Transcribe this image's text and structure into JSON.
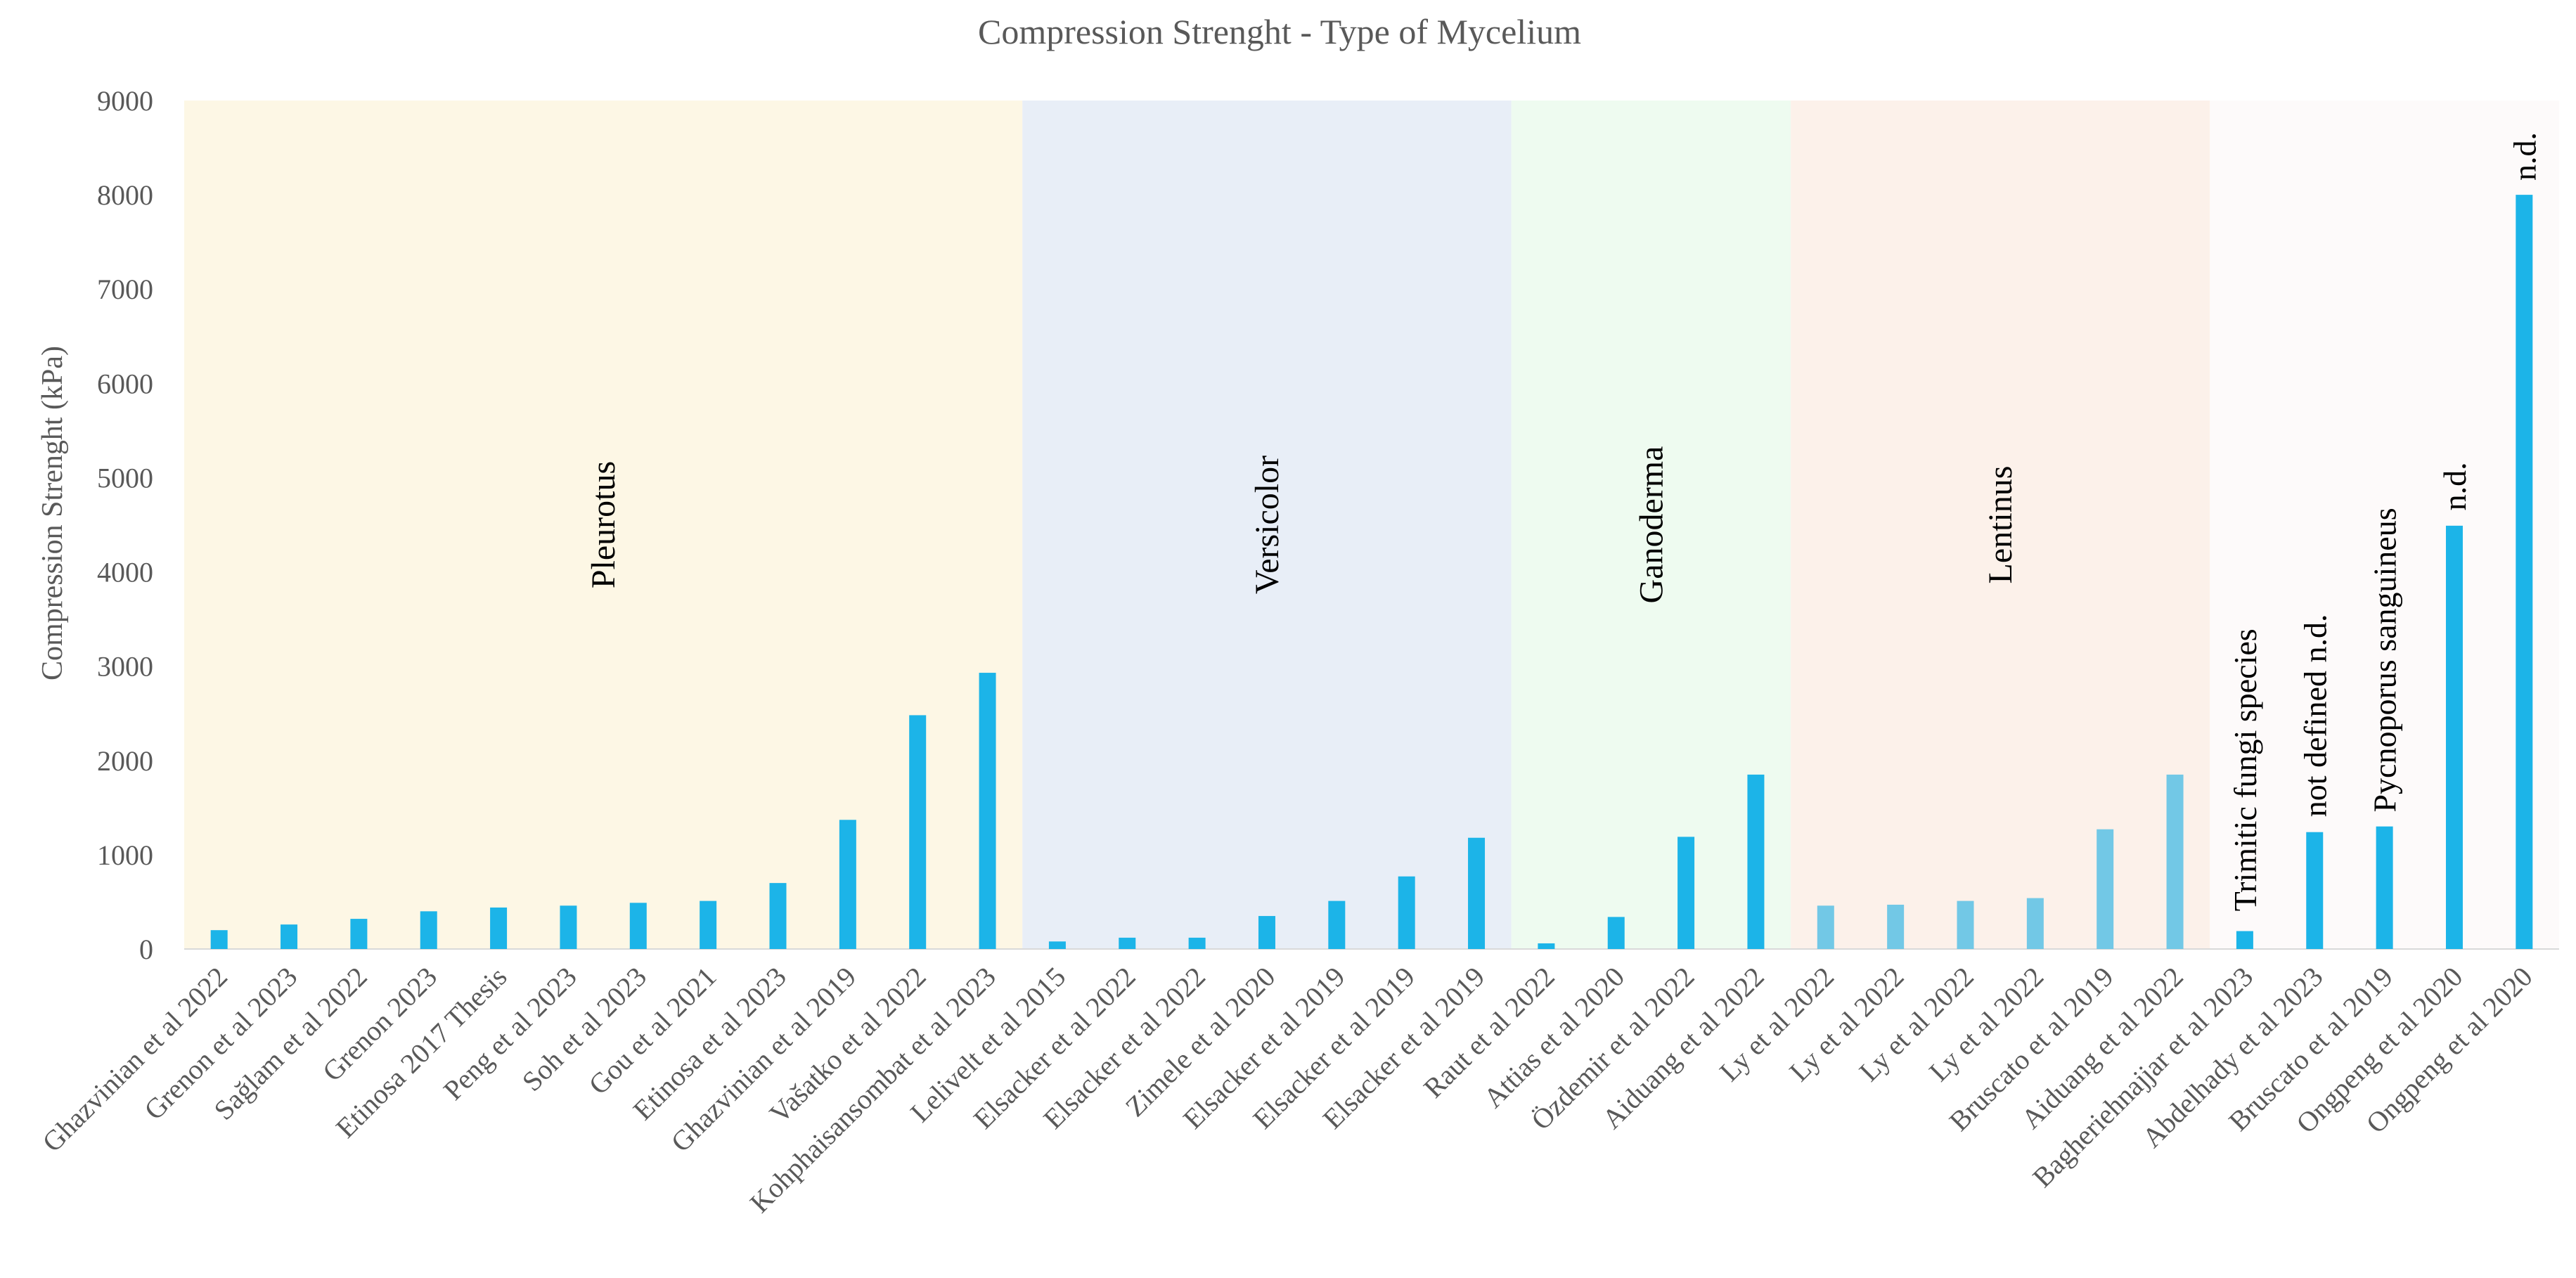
{
  "chart_data": {
    "type": "bar",
    "title": "Compression Strenght - Type of Mycelium",
    "xlabel": "",
    "ylabel": "Compression Strenght (kPa)",
    "ylim": [
      0,
      9000
    ],
    "yticks": [
      0,
      1000,
      2000,
      3000,
      4000,
      5000,
      6000,
      7000,
      8000,
      9000
    ],
    "grid": false,
    "categories": [
      "Ghazvinian et al 2022",
      "Grenon et al 2023",
      "Sağlam et al  2022",
      "Grenon 2023",
      "Etinosa 2017 Thesis",
      "Peng et al 2023",
      "Soh  et al 2023",
      "Gou et al 2021",
      "Etinosa et al 2023",
      "Ghazvinian et al 2019",
      "Vašatko et al 2022",
      "Kohphaisansombat et al 2023",
      "Lelivelt et al 2015",
      "Elsacker et al 2022",
      "Elsacker et al 2022",
      "Zimele et al  2020",
      "Elsacker et al 2019",
      "Elsacker et al 2019",
      "Elsacker et al 2019",
      "Raut et al 2022",
      "Attias et al 2020",
      "Özdemir et al  2022",
      "Aiduang et al  2022",
      "Ly et al  2022",
      "Ly et al  2022",
      "Ly et al 2022",
      "Ly et al 2022",
      "Bruscato et al  2019",
      "Aiduang et al  2022",
      "Bagheriehnajjar et al 2023",
      "Abdelhady et al 2023",
      "Bruscato et al 2019",
      "Ongpeng  et al 2020",
      "Ongpeng  et al 2020"
    ],
    "values": [
      200,
      260,
      320,
      400,
      440,
      460,
      490,
      510,
      700,
      1370,
      2480,
      2930,
      80,
      120,
      120,
      350,
      510,
      770,
      1180,
      60,
      340,
      1190,
      1850,
      460,
      470,
      510,
      540,
      1270,
      1850,
      190,
      1240,
      1300,
      4490,
      8000
    ],
    "bar_colors": [
      "#1cb4e8",
      "#1cb4e8",
      "#1cb4e8",
      "#1cb4e8",
      "#1cb4e8",
      "#1cb4e8",
      "#1cb4e8",
      "#1cb4e8",
      "#1cb4e8",
      "#1cb4e8",
      "#1cb4e8",
      "#1cb4e8",
      "#1cb4e8",
      "#1cb4e8",
      "#1cb4e8",
      "#1cb4e8",
      "#1cb4e8",
      "#1cb4e8",
      "#1cb4e8",
      "#1cb4e8",
      "#1cb4e8",
      "#1cb4e8",
      "#1cb4e8",
      "#72c8e6",
      "#72c8e6",
      "#72c8e6",
      "#72c8e6",
      "#72c8e6",
      "#72c8e6",
      "#1cb4e8",
      "#1cb4e8",
      "#1cb4e8",
      "#1cb4e8",
      "#1cb4e8"
    ],
    "groups": [
      {
        "name": "Pleurotus",
        "start": 0,
        "end": 11,
        "color": "#fdf7e5",
        "label_value": 4500
      },
      {
        "name": "Versicolor",
        "start": 12,
        "end": 18,
        "color": "#e8eef7",
        "label_value": 4500
      },
      {
        "name": "Ganoderma",
        "start": 19,
        "end": 22,
        "color": "#eefbf0",
        "label_value": 4500
      },
      {
        "name": "Lentinus",
        "start": 23,
        "end": 28,
        "color": "#fcf1ea",
        "label_value": 4500
      },
      {
        "name": "",
        "start": 29,
        "end": 33,
        "color": "#fdfafa",
        "label_value": 0
      }
    ],
    "annotations": [
      {
        "text": "Trimitic fungi species",
        "index": 29,
        "value": 400
      },
      {
        "text": "not defined n.d.",
        "index": 30,
        "value": 1400
      },
      {
        "text": "Pycnoporus sanguineus",
        "index": 31,
        "value": 1450
      },
      {
        "text": "n.d.",
        "index": 32,
        "value": 4650
      },
      {
        "text": "n.d.",
        "index": 33,
        "value": 8150
      }
    ]
  }
}
